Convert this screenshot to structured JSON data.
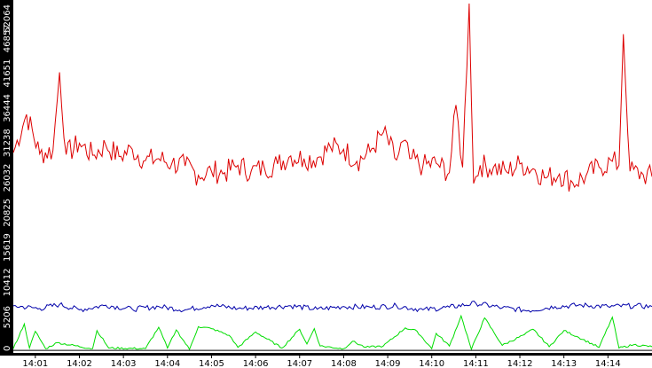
{
  "chart_data": {
    "type": "line",
    "title": "",
    "xlabel": "",
    "ylabel": "",
    "x_range": [
      "14:00:30",
      "14:15:00"
    ],
    "x_ticks": [
      "14:01",
      "14:02",
      "14:03",
      "14:04",
      "14:05",
      "14:06",
      "14:07",
      "14:08",
      "14:09",
      "14:10",
      "14:11",
      "14:12",
      "14:13",
      "14:14"
    ],
    "y_ticks": [
      "0",
      "5206",
      "10412",
      "15619",
      "20825",
      "26032",
      "31238",
      "36444",
      "41651",
      "46857",
      "52064"
    ],
    "ylim": [
      0,
      52064
    ],
    "grid": false,
    "legend": "none",
    "series": [
      {
        "color": "#dd0000",
        "x": [
          "14:00:30",
          "14:00:48",
          "14:01:06",
          "14:01:24",
          "14:01:33",
          "14:01:42",
          "14:02:00",
          "14:02:18",
          "14:02:36",
          "14:02:54",
          "14:03:12",
          "14:03:30",
          "14:03:48",
          "14:04:06",
          "14:04:24",
          "14:04:42",
          "14:05:00",
          "14:05:18",
          "14:05:36",
          "14:05:54",
          "14:06:12",
          "14:06:30",
          "14:06:48",
          "14:07:06",
          "14:07:24",
          "14:07:42",
          "14:08:00",
          "14:08:18",
          "14:08:36",
          "14:08:54",
          "14:09:12",
          "14:09:21",
          "14:09:30",
          "14:09:48",
          "14:10:06",
          "14:10:24",
          "14:10:33",
          "14:10:42",
          "14:10:51",
          "14:10:57",
          "14:11:06",
          "14:11:24",
          "14:11:42",
          "14:12:00",
          "14:12:18",
          "14:12:36",
          "14:12:54",
          "14:13:12",
          "14:13:30",
          "14:13:48",
          "14:14:06",
          "14:14:15",
          "14:14:21",
          "14:14:30",
          "14:14:48",
          "14:15:00"
        ],
        "values": [
          29800,
          35500,
          29600,
          30100,
          41800,
          29500,
          31200,
          29400,
          30900,
          29200,
          30300,
          28600,
          28900,
          28200,
          27800,
          26400,
          27000,
          26800,
          27900,
          27000,
          27500,
          28100,
          29300,
          28900,
          29000,
          30600,
          30300,
          28500,
          29900,
          32800,
          28700,
          31500,
          28900,
          27800,
          28200,
          26800,
          36900,
          27600,
          52064,
          25200,
          27900,
          27600,
          26900,
          28100,
          27400,
          26000,
          26600,
          25300,
          26300,
          27600,
          28500,
          27900,
          47500,
          27000,
          26500,
          26200
        ]
      },
      {
        "color": "#0000aa",
        "x": [
          "14:00:30",
          "14:01:06",
          "14:01:33",
          "14:02:00",
          "14:02:36",
          "14:03:12",
          "14:03:48",
          "14:04:24",
          "14:05:00",
          "14:05:36",
          "14:06:12",
          "14:06:48",
          "14:07:24",
          "14:08:00",
          "14:08:36",
          "14:09:12",
          "14:09:48",
          "14:10:24",
          "14:11:00",
          "14:11:36",
          "14:12:12",
          "14:12:48",
          "14:13:24",
          "14:14:00",
          "14:14:36",
          "14:15:00"
        ],
        "values": [
          6900,
          6500,
          7100,
          6300,
          7000,
          6400,
          6800,
          6300,
          7000,
          6500,
          6700,
          6900,
          6400,
          6800,
          6700,
          6900,
          6300,
          6700,
          7300,
          6600,
          6200,
          6800,
          7000,
          6800,
          6900,
          6800
        ]
      },
      {
        "color": "#00dd00",
        "x": [
          "14:00:30",
          "14:00:45",
          "14:00:52",
          "14:01:00",
          "14:01:14",
          "14:01:30",
          "14:02:18",
          "14:02:24",
          "14:02:40",
          "14:03:30",
          "14:03:48",
          "14:04:00",
          "14:04:12",
          "14:04:30",
          "14:04:42",
          "14:05:00",
          "14:05:24",
          "14:05:36",
          "14:06:00",
          "14:06:36",
          "14:07:00",
          "14:07:10",
          "14:07:20",
          "14:07:28",
          "14:08:00",
          "14:08:12",
          "14:08:30",
          "14:08:54",
          "14:09:24",
          "14:09:40",
          "14:10:00",
          "14:10:06",
          "14:10:24",
          "14:10:40",
          "14:10:54",
          "14:11:12",
          "14:11:36",
          "14:12:06",
          "14:12:18",
          "14:12:40",
          "14:13:00",
          "14:13:20",
          "14:13:48",
          "14:14:06",
          "14:14:15",
          "14:14:35",
          "14:15:00"
        ],
        "values": [
          500,
          4200,
          600,
          3100,
          500,
          1400,
          500,
          3200,
          600,
          500,
          3700,
          600,
          3300,
          400,
          3800,
          3500,
          2500,
          700,
          3000,
          600,
          3400,
          1200,
          3500,
          900,
          500,
          1600,
          700,
          900,
          3600,
          3100,
          500,
          2800,
          900,
          5400,
          400,
          5100,
          1000,
          2600,
          3400,
          800,
          3200,
          2200,
          700,
          5200,
          600,
          1100,
          800
        ]
      },
      {
        "color": "#000000",
        "x": [
          "14:00:30",
          "14:15:00"
        ],
        "values": [
          250,
          250
        ]
      }
    ]
  }
}
